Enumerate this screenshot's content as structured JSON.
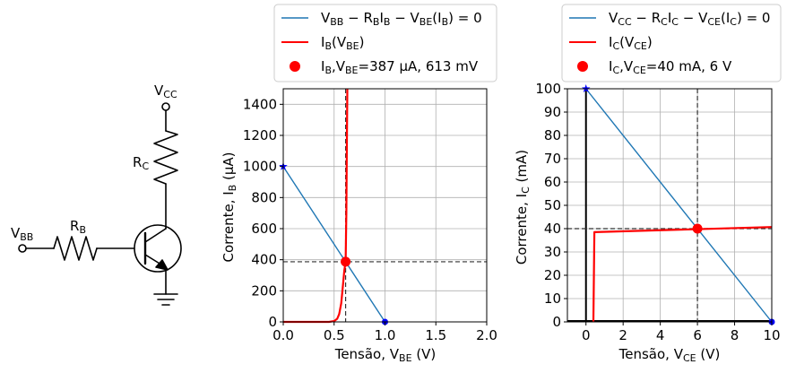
{
  "colors": {
    "line_blue": "#1f77b4",
    "curve_red": "#ff0000",
    "grid": "#b0b0b0",
    "marker_blue": "#0000ff",
    "black": "#000000"
  },
  "circuit": {
    "vbb_label": "V",
    "vbb_sub": "BB",
    "rb_label": "R",
    "rb_sub": "B",
    "vcc_label": "V",
    "vcc_sub": "CC",
    "rc_label": "R",
    "rc_sub": "C"
  },
  "chart_data": [
    {
      "type": "line",
      "title": "",
      "xlabel": "Tensão, V_BE (V)",
      "ylabel": "Corrente, I_B (µA)",
      "xlim": [
        0.0,
        2.0
      ],
      "ylim": [
        0,
        1500
      ],
      "x_ticks": [
        0.0,
        0.5,
        1.0,
        1.5,
        2.0
      ],
      "x_tick_labels": [
        "0.0",
        "0.5",
        "1.0",
        "1.5",
        "2.0"
      ],
      "y_ticks": [
        0,
        200,
        400,
        600,
        800,
        1000,
        1200,
        1400
      ],
      "y_tick_labels": [
        "0",
        "200",
        "400",
        "600",
        "800",
        "1000",
        "1200",
        "1400"
      ],
      "grid": true,
      "legend_placement": "above",
      "legend": [
        {
          "kind": "line",
          "color": "#1f77b4",
          "text": "V_BB − R_B I_B − V_BE(I_B) = 0"
        },
        {
          "kind": "line",
          "color": "#ff0000",
          "text": "I_B(V_BE)"
        },
        {
          "kind": "marker",
          "color": "#ff0000",
          "text": "I_B,V_BE=387 µA, 613 mV"
        }
      ],
      "series": [
        {
          "kind": "load_line",
          "color": "#1f77b4",
          "x": [
            0.0,
            1.0
          ],
          "y": [
            1000,
            0
          ]
        },
        {
          "kind": "diode_curve",
          "color": "#ff0000",
          "x": [
            0.0,
            0.45,
            0.5,
            0.53,
            0.55,
            0.57,
            0.59,
            0.6,
            0.613,
            0.62,
            0.625,
            0.63
          ],
          "y": [
            0,
            0,
            5,
            20,
            50,
            120,
            260,
            330,
            387,
            700,
            1100,
            1500
          ]
        }
      ],
      "endpoints": [
        {
          "x": 0.0,
          "y": 1000,
          "color": "#0000ff",
          "shape": "star"
        },
        {
          "x": 1.0,
          "y": 0,
          "color": "#0000ff",
          "shape": "dot"
        }
      ],
      "operating_point": {
        "x": 0.613,
        "y": 387
      }
    },
    {
      "type": "line",
      "title": "",
      "xlabel": "Tensão, V_CE (V)",
      "ylabel": "Corrente, I_C (mA)",
      "xlim": [
        -1,
        10
      ],
      "ylim": [
        0,
        100
      ],
      "x_ticks": [
        0,
        2,
        4,
        6,
        8,
        10
      ],
      "x_tick_labels": [
        "0",
        "2",
        "4",
        "6",
        "8",
        "10"
      ],
      "y_ticks": [
        0,
        10,
        20,
        30,
        40,
        50,
        60,
        70,
        80,
        90,
        100
      ],
      "y_tick_labels": [
        "0",
        "10",
        "20",
        "30",
        "40",
        "50",
        "60",
        "70",
        "80",
        "90",
        "100"
      ],
      "grid": true,
      "legend_placement": "above",
      "legend": [
        {
          "kind": "line",
          "color": "#1f77b4",
          "text": "V_CC − R_C I_C − V_CE(I_C) = 0"
        },
        {
          "kind": "line",
          "color": "#ff0000",
          "text": "I_C(V_CE)"
        },
        {
          "kind": "marker",
          "color": "#ff0000",
          "text": "I_C,V_CE=40 mA,  6 V"
        }
      ],
      "series": [
        {
          "kind": "load_line",
          "color": "#1f77b4",
          "x": [
            0,
            10
          ],
          "y": [
            100,
            0
          ]
        },
        {
          "kind": "transistor_curve",
          "color": "#ff0000",
          "x": [
            0.4,
            0.45,
            10
          ],
          "y": [
            0,
            38.5,
            40.7
          ]
        }
      ],
      "axis_lines": {
        "x": 0,
        "y": 0
      },
      "endpoints": [
        {
          "x": 0,
          "y": 100,
          "color": "#0000ff",
          "shape": "star"
        },
        {
          "x": 10,
          "y": 0,
          "color": "#0000ff",
          "shape": "dot"
        }
      ],
      "operating_point": {
        "x": 6,
        "y": 40
      }
    }
  ]
}
